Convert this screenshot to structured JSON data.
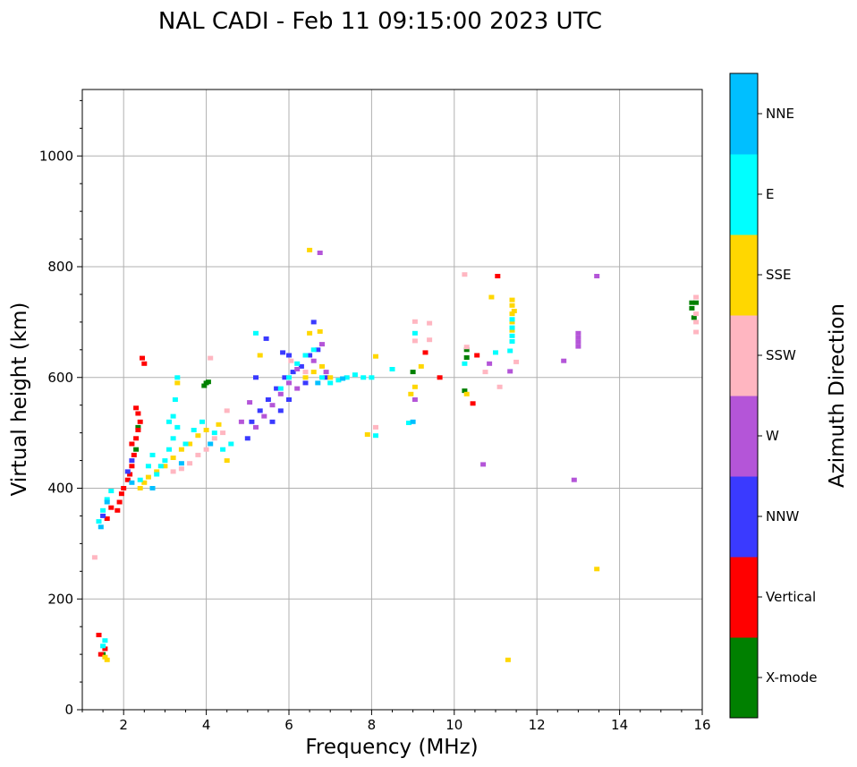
{
  "chart_data": {
    "type": "scatter",
    "title": "NAL CADI - Feb 11 09:15:00 2023 UTC",
    "xlabel": "Frequency (MHz)",
    "ylabel": "Virtual height (km)",
    "xlim": [
      1,
      16
    ],
    "ylim": [
      0,
      1120
    ],
    "xticks": [
      2,
      4,
      6,
      8,
      10,
      12,
      14,
      16
    ],
    "yticks": [
      0,
      200,
      400,
      600,
      800,
      1000
    ],
    "xticks_minor_step": 0.5,
    "yticks_minor_step": 50,
    "grid": true,
    "colorbar": {
      "label": "Azimuth Direction",
      "position": "right",
      "categories": [
        {
          "name": "X-mode",
          "color": "#008000"
        },
        {
          "name": "Vertical",
          "color": "#ff0000"
        },
        {
          "name": "NNW",
          "color": "#3a3aff"
        },
        {
          "name": "W",
          "color": "#b455d8"
        },
        {
          "name": "SSW",
          "color": "#ffb6c1"
        },
        {
          "name": "SSE",
          "color": "#ffd700"
        },
        {
          "name": "E",
          "color": "#00ffff"
        },
        {
          "name": "NNE",
          "color": "#00bfff"
        }
      ]
    },
    "series": [
      {
        "name": "X-mode",
        "points": [
          [
            4.0,
            590
          ],
          [
            3.95,
            585
          ],
          [
            4.05,
            592
          ],
          [
            9.0,
            610
          ],
          [
            10.3,
            650
          ],
          [
            10.3,
            636
          ],
          [
            10.25,
            576
          ],
          [
            15.75,
            735
          ],
          [
            15.85,
            735
          ],
          [
            15.75,
            725
          ],
          [
            15.8,
            708
          ],
          [
            1.5,
            100
          ],
          [
            2.3,
            470
          ],
          [
            2.35,
            510
          ]
        ]
      },
      {
        "name": "Vertical",
        "points": [
          [
            2.3,
            545
          ],
          [
            2.4,
            520
          ],
          [
            2.35,
            505
          ],
          [
            2.45,
            635
          ],
          [
            2.5,
            625
          ],
          [
            2.2,
            480
          ],
          [
            2.3,
            490
          ],
          [
            2.2,
            440
          ],
          [
            2.15,
            425
          ],
          [
            2.0,
            400
          ],
          [
            1.9,
            375
          ],
          [
            1.85,
            360
          ],
          [
            1.55,
            110
          ],
          [
            1.45,
            100
          ],
          [
            1.4,
            135
          ],
          [
            10.45,
            553
          ],
          [
            11.05,
            783
          ],
          [
            10.55,
            640
          ],
          [
            9.65,
            600
          ],
          [
            9.3,
            645
          ],
          [
            1.6,
            345
          ],
          [
            1.7,
            365
          ],
          [
            2.25,
            460
          ],
          [
            2.35,
            535
          ],
          [
            2.1,
            415
          ],
          [
            1.95,
            390
          ]
        ]
      },
      {
        "name": "NNW",
        "points": [
          [
            5.0,
            490
          ],
          [
            5.1,
            520
          ],
          [
            5.3,
            540
          ],
          [
            5.5,
            560
          ],
          [
            5.7,
            580
          ],
          [
            5.9,
            600
          ],
          [
            6.1,
            610
          ],
          [
            6.3,
            620
          ],
          [
            6.5,
            640
          ],
          [
            6.7,
            650
          ],
          [
            6.9,
            600
          ],
          [
            6.6,
            700
          ],
          [
            5.45,
            670
          ],
          [
            5.6,
            520
          ],
          [
            5.8,
            540
          ],
          [
            6.0,
            560
          ],
          [
            2.1,
            430
          ],
          [
            2.2,
            450
          ],
          [
            1.5,
            350
          ],
          [
            6.0,
            640
          ],
          [
            5.2,
            600
          ],
          [
            6.4,
            590
          ],
          [
            5.85,
            645
          ]
        ]
      },
      {
        "name": "W",
        "points": [
          [
            5.2,
            510
          ],
          [
            5.4,
            530
          ],
          [
            5.6,
            550
          ],
          [
            5.8,
            570
          ],
          [
            6.0,
            590
          ],
          [
            6.2,
            615
          ],
          [
            6.6,
            630
          ],
          [
            6.8,
            660
          ],
          [
            6.9,
            610
          ],
          [
            13.0,
            680
          ],
          [
            13.0,
            672
          ],
          [
            13.0,
            664
          ],
          [
            13.0,
            656
          ],
          [
            12.65,
            630
          ],
          [
            13.45,
            783
          ],
          [
            12.9,
            415
          ],
          [
            10.7,
            443
          ],
          [
            11.35,
            611
          ],
          [
            9.05,
            560
          ],
          [
            10.85,
            625
          ],
          [
            5.05,
            555
          ],
          [
            4.85,
            520
          ],
          [
            6.2,
            580
          ],
          [
            6.75,
            825
          ]
        ]
      },
      {
        "name": "SSW",
        "points": [
          [
            3.8,
            460
          ],
          [
            4.0,
            470
          ],
          [
            4.2,
            490
          ],
          [
            4.4,
            500
          ],
          [
            3.6,
            445
          ],
          [
            3.4,
            435
          ],
          [
            3.2,
            430
          ],
          [
            10.25,
            786
          ],
          [
            9.05,
            701
          ],
          [
            9.4,
            698
          ],
          [
            9.05,
            666
          ],
          [
            9.4,
            668
          ],
          [
            10.3,
            655
          ],
          [
            10.75,
            610
          ],
          [
            11.1,
            583
          ],
          [
            11.5,
            628
          ],
          [
            15.85,
            745
          ],
          [
            15.85,
            715
          ],
          [
            15.85,
            700
          ],
          [
            15.85,
            682
          ],
          [
            1.3,
            275
          ],
          [
            4.1,
            635
          ],
          [
            6.05,
            630
          ],
          [
            6.4,
            610
          ],
          [
            8.1,
            510
          ],
          [
            4.5,
            540
          ]
        ]
      },
      {
        "name": "SSE",
        "points": [
          [
            2.6,
            420
          ],
          [
            2.8,
            430
          ],
          [
            3.0,
            440
          ],
          [
            3.2,
            455
          ],
          [
            3.4,
            470
          ],
          [
            3.6,
            480
          ],
          [
            3.8,
            495
          ],
          [
            4.0,
            505
          ],
          [
            4.3,
            515
          ],
          [
            4.5,
            450
          ],
          [
            2.5,
            410
          ],
          [
            2.4,
            400
          ],
          [
            6.4,
            600
          ],
          [
            6.6,
            610
          ],
          [
            6.8,
            620
          ],
          [
            7.0,
            600
          ],
          [
            6.5,
            680
          ],
          [
            6.75,
            683
          ],
          [
            8.1,
            638
          ],
          [
            8.5,
            615
          ],
          [
            8.95,
            570
          ],
          [
            9.05,
            583
          ],
          [
            11.4,
            740
          ],
          [
            11.4,
            730
          ],
          [
            11.4,
            715
          ],
          [
            11.4,
            700
          ],
          [
            11.4,
            685
          ],
          [
            11.45,
            720
          ],
          [
            13.45,
            254
          ],
          [
            11.3,
            90
          ],
          [
            10.9,
            745
          ],
          [
            10.3,
            570
          ],
          [
            6.5,
            830
          ],
          [
            7.9,
            497
          ],
          [
            1.55,
            95
          ],
          [
            1.6,
            90
          ],
          [
            3.3,
            590
          ],
          [
            5.3,
            640
          ],
          [
            9.2,
            620
          ]
        ]
      },
      {
        "name": "E",
        "points": [
          [
            3.0,
            450
          ],
          [
            3.1,
            470
          ],
          [
            3.2,
            490
          ],
          [
            3.3,
            510
          ],
          [
            3.2,
            530
          ],
          [
            3.25,
            560
          ],
          [
            3.3,
            600
          ],
          [
            2.9,
            440
          ],
          [
            2.8,
            425
          ],
          [
            3.1,
            520
          ],
          [
            7.0,
            590
          ],
          [
            7.2,
            595
          ],
          [
            7.4,
            600
          ],
          [
            7.6,
            605
          ],
          [
            7.8,
            600
          ],
          [
            8.0,
            600
          ],
          [
            8.5,
            615
          ],
          [
            8.9,
            518
          ],
          [
            11.4,
            675
          ],
          [
            11.4,
            665
          ],
          [
            11.35,
            648
          ],
          [
            11.4,
            705
          ],
          [
            11.4,
            690
          ],
          [
            10.25,
            625
          ],
          [
            9.05,
            680
          ],
          [
            1.55,
            125
          ],
          [
            1.5,
            115
          ],
          [
            3.5,
            480
          ],
          [
            3.7,
            505
          ],
          [
            3.9,
            520
          ],
          [
            4.2,
            500
          ],
          [
            4.4,
            470
          ],
          [
            5.8,
            580
          ],
          [
            6.0,
            600
          ],
          [
            6.2,
            625
          ],
          [
            6.4,
            640
          ],
          [
            6.6,
            650
          ],
          [
            6.8,
            600
          ],
          [
            1.4,
            340
          ],
          [
            1.5,
            360
          ],
          [
            1.6,
            380
          ],
          [
            1.7,
            395
          ],
          [
            2.4,
            415
          ],
          [
            2.6,
            440
          ],
          [
            2.7,
            460
          ],
          [
            8.1,
            495
          ],
          [
            5.2,
            680
          ],
          [
            4.6,
            480
          ],
          [
            11.0,
            645
          ]
        ]
      },
      {
        "name": "NNE",
        "points": [
          [
            2.2,
            410
          ],
          [
            2.7,
            400
          ],
          [
            3.4,
            445
          ],
          [
            4.1,
            480
          ],
          [
            7.3,
            598
          ],
          [
            6.7,
            590
          ],
          [
            9.0,
            520
          ],
          [
            1.45,
            330
          ],
          [
            1.6,
            375
          ]
        ]
      }
    ]
  }
}
